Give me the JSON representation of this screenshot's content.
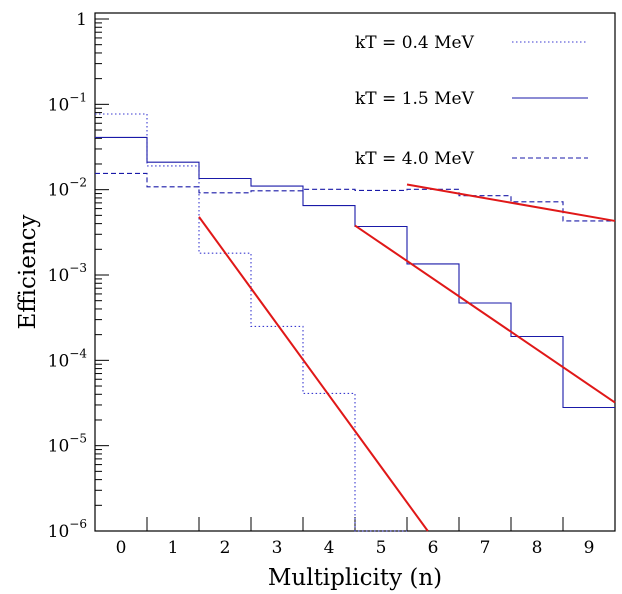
{
  "chart_data": {
    "type": "line",
    "title": "",
    "xlabel": "Multiplicity (n)",
    "ylabel": "Efficiency",
    "xlim": [
      -0.5,
      9.5
    ],
    "ylim": [
      1e-06,
      1.5
    ],
    "y_log": true,
    "grid": false,
    "legend_position": "top-right",
    "x_ticks": [
      {
        "value": 0,
        "label": "0"
      },
      {
        "value": 1,
        "label": "1"
      },
      {
        "value": 2,
        "label": "2"
      },
      {
        "value": 3,
        "label": "3"
      },
      {
        "value": 4,
        "label": "4"
      },
      {
        "value": 5,
        "label": "5"
      },
      {
        "value": 6,
        "label": "6"
      },
      {
        "value": 7,
        "label": "7"
      },
      {
        "value": 8,
        "label": "8"
      },
      {
        "value": 9,
        "label": "9"
      }
    ],
    "y_ticks": [
      {
        "value": 1,
        "base": "1",
        "exp": ""
      },
      {
        "value": 0.1,
        "base": "10",
        "exp": "−1"
      },
      {
        "value": 0.01,
        "base": "10",
        "exp": "−2"
      },
      {
        "value": 0.001,
        "base": "10",
        "exp": "−3"
      },
      {
        "value": 0.0001,
        "base": "10",
        "exp": "−4"
      },
      {
        "value": 1e-05,
        "base": "10",
        "exp": "−5"
      },
      {
        "value": 1e-06,
        "base": "10",
        "exp": "−6"
      }
    ],
    "series": [
      {
        "name": "kT = 0.4 MeV",
        "style": "dotted",
        "color": "#3a3ad0",
        "kind": "histogram",
        "x": [
          0,
          1,
          2,
          3,
          4,
          5
        ],
        "values": [
          0.077,
          0.019,
          0.0018,
          0.00025,
          4.1e-05,
          0
        ]
      },
      {
        "name": "kT = 1.5 MeV",
        "style": "solid",
        "color": "#1a1aa8",
        "kind": "histogram",
        "x": [
          0,
          1,
          2,
          3,
          4,
          5,
          6,
          7,
          8,
          9
        ],
        "values": [
          0.041,
          0.021,
          0.0135,
          0.011,
          0.0065,
          0.0037,
          0.00135,
          0.00047,
          0.00019,
          2.8e-05
        ]
      },
      {
        "name": "kT = 4.0 MeV",
        "style": "dashed",
        "color": "#1a1aa8",
        "kind": "histogram",
        "x": [
          0,
          1,
          2,
          3,
          4,
          5,
          6,
          7,
          8,
          9
        ],
        "values": [
          0.0155,
          0.0108,
          0.0092,
          0.0097,
          0.0101,
          0.0098,
          0.0101,
          0.0085,
          0.0072,
          0.0043
        ]
      }
    ],
    "fits": [
      {
        "color": "#e01818",
        "x": [
          1.5,
          5.9
        ],
        "y": [
          0.0048,
          1e-06
        ]
      },
      {
        "color": "#e01818",
        "x": [
          4.5,
          9.5
        ],
        "y": [
          0.0038,
          3.2e-05
        ]
      },
      {
        "color": "#e01818",
        "x": [
          5.5,
          9.5
        ],
        "y": [
          0.0115,
          0.0043
        ]
      }
    ]
  }
}
